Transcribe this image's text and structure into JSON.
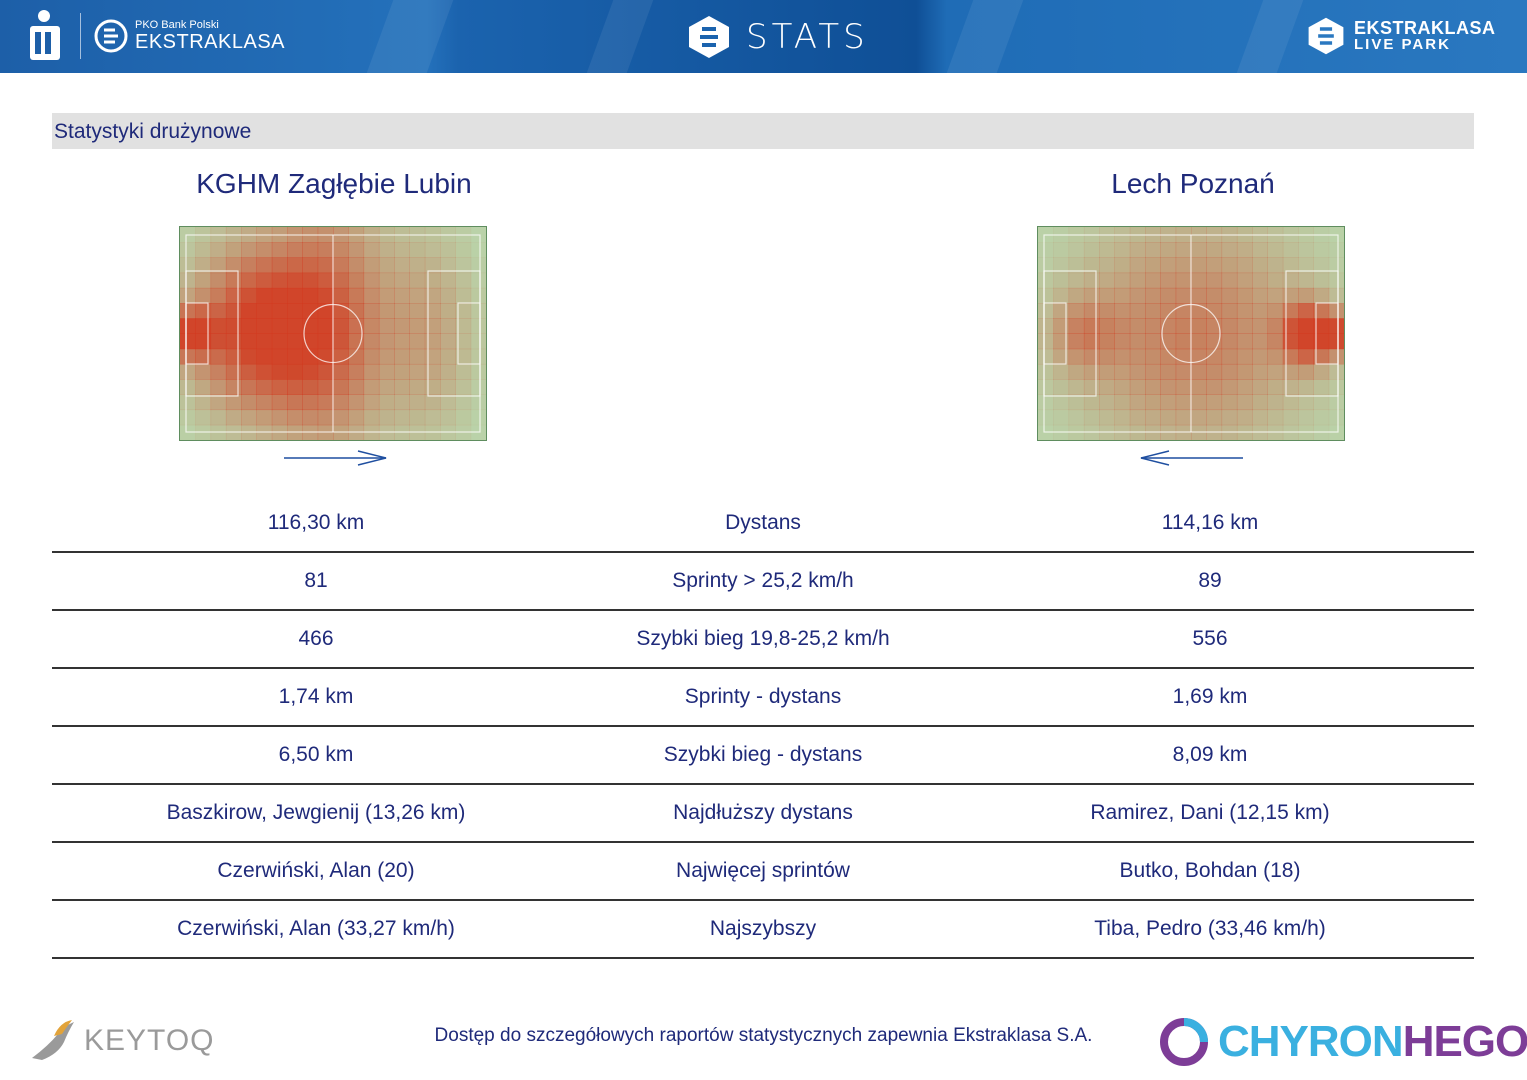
{
  "header": {
    "left_logo_line1": "PKO Bank Polski",
    "left_logo_line2": "EKSTRAKLASA",
    "center_title": "STATS",
    "right_logo_line1": "EKSTRAKLASA",
    "right_logo_line2": "LIVE PARK"
  },
  "section_title": "Statystyki drużynowe",
  "teams": {
    "home": "KGHM Zagłębie Lubin",
    "away": "Lech Poznań"
  },
  "stats_rows": [
    {
      "home": "116,30 km",
      "label": "Dystans",
      "away": "114,16 km"
    },
    {
      "home": "81",
      "label": "Sprinty > 25,2 km/h",
      "away": "89"
    },
    {
      "home": "466",
      "label": "Szybki bieg 19,8-25,2 km/h",
      "away": "556"
    },
    {
      "home": "1,74 km",
      "label": "Sprinty - dystans",
      "away": "1,69 km"
    },
    {
      "home": "6,50 km",
      "label": "Szybki bieg - dystans",
      "away": "8,09 km"
    },
    {
      "home": "Baszkirow, Jewgienij (13,26 km)",
      "label": "Najdłuższy dystans",
      "away": "Ramirez, Dani (12,15 km)"
    },
    {
      "home": "Czerwiński, Alan (20)",
      "label": "Najwięcej sprintów",
      "away": "Butko, Bohdan (18)"
    },
    {
      "home": "Czerwiński, Alan (33,27 km/h)",
      "label": "Najszybszy",
      "away": "Tiba, Pedro (33,46 km/h)"
    }
  ],
  "attack_direction": {
    "home": "right",
    "away": "left"
  },
  "footer": {
    "left_logo": "KEYTOQ",
    "text": "Dostęp do szczegółowych raportów statystycznych zapewnia Ekstraklasa S.A.",
    "right_logo_part1": "CHYRON",
    "right_logo_part2": "HEGO"
  },
  "colors": {
    "header_blue": "#1f6cb6",
    "text_navy": "#1f2a7a",
    "pitch_green": "#b9dbb0",
    "heat_red": "#d2381e"
  }
}
